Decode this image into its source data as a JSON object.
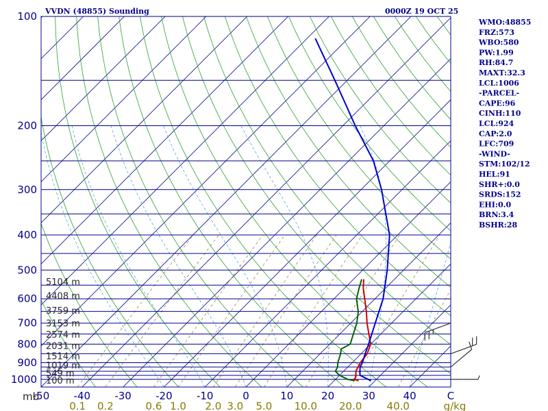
{
  "title": "VVDN (48855) Sounding",
  "time": "0000Z 19 OCT 25",
  "side_panel": [
    "WMO:48855",
    "FRZ:573",
    "WBO:580",
    "PW:1.99",
    "RH:84.7",
    "MAXT:32.3",
    "LCL:1006",
    "-PARCEL-",
    "CAPE:96",
    "CINH:110",
    "LCL:924",
    "CAP:2.0",
    "LFC:709",
    "-WIND-",
    "STM:102/12",
    "HEL:91",
    "SHR+:0.0",
    "SRDS:152",
    "EHI:0.0",
    "BRN:3.4",
    "BSHR:28"
  ],
  "colors": {
    "isobar": "#00008b",
    "isotherm": "#00008b",
    "dry_adiabat": "#2e9e2e",
    "moist_adiabat": "#5aa7d6",
    "mixing_ratio": "#9a8a4a",
    "temperature": "#cc0000",
    "dewpoint": "#006400",
    "parcel": "#0000cc",
    "wind": "#333333"
  },
  "chart_data": {
    "type": "line",
    "title": "VVDN (48855) Sounding",
    "xlabel": "",
    "ylabel": "mb",
    "x_scale": "skew-T",
    "y_scale": "log",
    "ylim": [
      1050,
      100
    ],
    "xlim_at_surface": [
      -50,
      50
    ],
    "pressure_ticks": [
      "100",
      "200",
      "300",
      "400",
      "500",
      "600",
      "700",
      "800",
      "900",
      "1000"
    ],
    "temp_ticks": [
      "-50",
      "-40",
      "-30",
      "-20",
      "-10",
      "0",
      "10",
      "20",
      "30",
      "40",
      "C"
    ],
    "temp_tick_values": [
      -50,
      -40,
      -30,
      -20,
      -10,
      0,
      10,
      20,
      30,
      40,
      50
    ],
    "mixing_ratio_ticks": [
      "0.1",
      "0.2",
      "0.6",
      "1.0",
      "2.0",
      "3.0",
      "5.0",
      "10.0",
      "20.0",
      "40.0",
      "g/kg"
    ],
    "height_labels": [
      {
        "p": 540,
        "text": "5104 m"
      },
      {
        "p": 590,
        "text": "4408 m"
      },
      {
        "p": 648,
        "text": "3759 m"
      },
      {
        "p": 702,
        "text": "3153 m"
      },
      {
        "p": 755,
        "text": "2574 m"
      },
      {
        "p": 811,
        "text": "2031 m"
      },
      {
        "p": 866,
        "text": "1514 m"
      },
      {
        "p": 918,
        "text": "1019 m"
      },
      {
        "p": 964,
        "text": "549 m"
      },
      {
        "p": 1010,
        "text": "100 m"
      }
    ],
    "series": [
      {
        "name": "temperature",
        "points": [
          [
            1009,
            26.0
          ],
          [
            1000,
            24.5
          ],
          [
            990,
            24.5
          ],
          [
            975,
            24.0
          ],
          [
            950,
            23.0
          ],
          [
            925,
            22.5
          ],
          [
            900,
            22.0
          ],
          [
            850,
            21.5
          ],
          [
            800,
            20.0
          ],
          [
            700,
            14.0
          ],
          [
            650,
            11.0
          ],
          [
            600,
            7.5
          ],
          [
            560,
            4.5
          ],
          [
            530,
            2.5
          ]
        ]
      },
      {
        "name": "dewpoint",
        "points": [
          [
            1009,
            25.0
          ],
          [
            1000,
            23.0
          ],
          [
            975,
            20.0
          ],
          [
            950,
            18.0
          ],
          [
            925,
            17.5
          ],
          [
            900,
            16.5
          ],
          [
            850,
            15.0
          ],
          [
            825,
            14.0
          ],
          [
            800,
            15.0
          ],
          [
            700,
            11.5
          ],
          [
            650,
            9.0
          ],
          [
            600,
            5.5
          ],
          [
            560,
            3.5
          ],
          [
            530,
            2.0
          ]
        ]
      },
      {
        "name": "parcel",
        "points": [
          [
            1009,
            29.0
          ],
          [
            975,
            25.0
          ],
          [
            950,
            24.0
          ],
          [
            925,
            23.0
          ],
          [
            900,
            22.5
          ],
          [
            850,
            21.0
          ],
          [
            800,
            19.5
          ],
          [
            700,
            16.0
          ],
          [
            600,
            12.0
          ],
          [
            500,
            6.0
          ],
          [
            400,
            -2.0
          ],
          [
            300,
            -15.0
          ],
          [
            250,
            -24.0
          ],
          [
            200,
            -37.0
          ],
          [
            150,
            -53.0
          ],
          [
            115,
            -68.0
          ]
        ]
      }
    ],
    "wind_barbs": [
      {
        "p": 700,
        "dir": 250,
        "spd": 25
      },
      {
        "p": 850,
        "dir": 70,
        "spd": 20
      },
      {
        "p": 925,
        "dir": 50,
        "spd": 10
      },
      {
        "p": 1000,
        "dir": 90,
        "spd": 5
      }
    ]
  }
}
